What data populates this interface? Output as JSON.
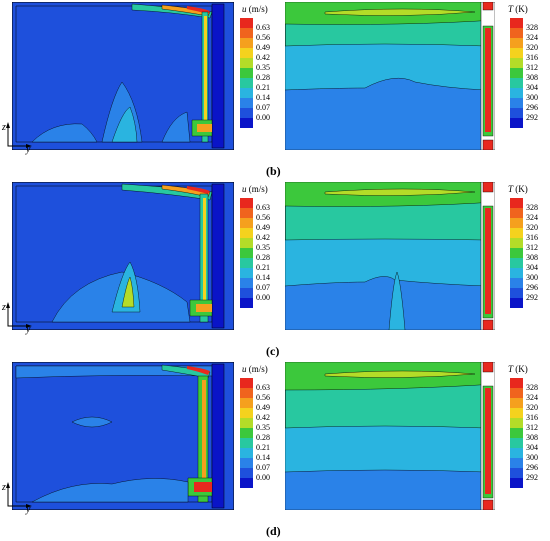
{
  "panels": [
    {
      "caption": "(b)"
    },
    {
      "caption": "(c)"
    },
    {
      "caption": "(d)"
    }
  ],
  "velocity_colorbar": {
    "symbol": "u",
    "unit": "(m/s)",
    "ticks": [
      "0.63",
      "0.56",
      "0.49",
      "0.42",
      "0.35",
      "0.28",
      "0.21",
      "0.14",
      "0.07",
      "0.00"
    ],
    "colors": [
      "#e8281e",
      "#f0641e",
      "#f5a01e",
      "#f5d21e",
      "#b4dc28",
      "#3cc83c",
      "#28c8a0",
      "#2ab4e0",
      "#2a82e8",
      "#1e50dc",
      "#0a14c8"
    ]
  },
  "temperature_colorbar": {
    "symbol": "T",
    "unit": "(K)",
    "ticks": [
      "328",
      "324",
      "320",
      "316",
      "312",
      "308",
      "304",
      "300",
      "296",
      "292"
    ],
    "colors": [
      "#e8281e",
      "#f0641e",
      "#f5a01e",
      "#f5d21e",
      "#b4dc28",
      "#3cc83c",
      "#28c8a0",
      "#2ab4e0",
      "#2a82e8",
      "#1e50dc",
      "#0a14c8"
    ]
  },
  "axes": {
    "vertical": "z",
    "horizontal": "y"
  }
}
